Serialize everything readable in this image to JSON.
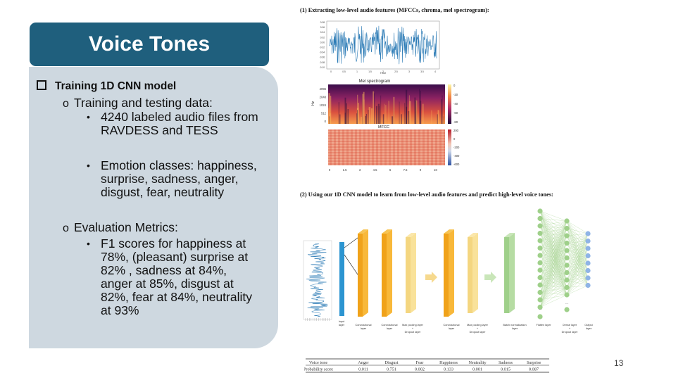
{
  "title": "Voice Tones",
  "section": {
    "heading": "Training 1D CNN model"
  },
  "training": {
    "heading": "Training and testing data:",
    "b1": [
      "4240 labeled audio files from",
      "RAVDESS and TESS"
    ],
    "b2": [
      "Emotion classes: happiness,",
      "surprise, sadness, anger,",
      "disgust, fear, neutrality"
    ]
  },
  "evaluation": {
    "heading": "Evaluation Metrics:",
    "b1": [
      "F1 scores for happiness at",
      "78%, (pleasant) surprise at",
      "82% , sadness at 84%,",
      "anger at 85%, disgust at",
      "82%, fear at 84%, neutrality",
      "at 93%"
    ]
  },
  "figure1": {
    "caption": "(1) Extracting low-level audio features (MFCCs, chroma, mel spectrogram):",
    "wave_yticks": [
      "0.08",
      "0.06",
      "0.04",
      "0.02",
      "0.00",
      "-0.02",
      "-0.04",
      "-0.06",
      "-0.08",
      "-0.10"
    ],
    "wave_xticks": [
      "0",
      "0.5",
      "1",
      "1.5",
      "2",
      "2.5",
      "3",
      "3.5",
      "4"
    ],
    "wave_xlabel": "Time",
    "mel_title": "Mel spectrogram",
    "mel_ylabel": "Hz",
    "mel_yticks": [
      "4096",
      "2048",
      "1024",
      "512",
      "0"
    ],
    "mel_cbar": [
      "0",
      "-20",
      "-40",
      "-60",
      "-80"
    ],
    "mfcc_title": "MFCC",
    "mfcc_cbar": [
      "200",
      "0",
      "-200",
      "-400",
      "-600"
    ],
    "mfcc_xticks": [
      "0",
      "1.5",
      "3",
      "4.5",
      "6",
      "7.5",
      "9",
      "10"
    ]
  },
  "figure2": {
    "caption": "(2) Using our 1D CNN model to learn from low-level audio features and predict high-level voice tones:",
    "labels": {
      "input": [
        "Input",
        "layer"
      ],
      "conv1": [
        "Convolutional",
        "layer"
      ],
      "conv2": [
        "Convolutional",
        "layer"
      ],
      "pool1": [
        "Max pooling layer",
        "+",
        "Dropout layer"
      ],
      "conv3": [
        "Convolutional",
        "layer"
      ],
      "pool2": [
        "Max pooling layer",
        "+",
        "Dropout layer"
      ],
      "bn": [
        "Batch normalization",
        "layer"
      ],
      "flatten": [
        "Flatten layer"
      ],
      "dense": [
        "Dense layer",
        "+",
        "Dropout layer"
      ],
      "output": [
        "Output",
        "layer"
      ]
    }
  },
  "table": {
    "headers": [
      "Voice tone",
      "Anger",
      "Disgust",
      "Fear",
      "Happiness",
      "Neutrality",
      "Sadness",
      "Surprise"
    ],
    "row": [
      "Probability score",
      "0.011",
      "0.751",
      "0.002",
      "0.133",
      "0.001",
      "0.015",
      "0.087"
    ]
  },
  "page_number": "13",
  "colors": {
    "title_bg": "#1f5f7d",
    "panel_bg": "#ced8e0",
    "waveform": "#2a7ab5",
    "conv_layer": "#f2a81d",
    "pool_layer": "#f6dc8a",
    "bn_layer": "#9fd08a",
    "node_green": "#9fd08a",
    "node_blue": "#8fb4e6"
  }
}
